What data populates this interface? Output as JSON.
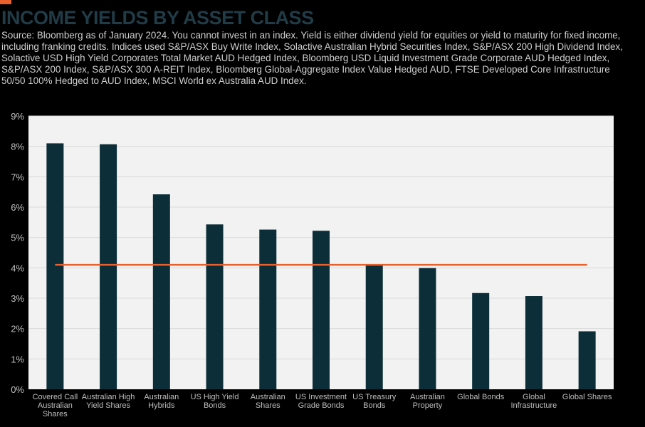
{
  "header": {
    "title": "INCOME YIELDS BY ASSET CLASS",
    "source_note": "Source: Bloomberg as of January 2024. You cannot invest in an index. Yield is either dividend yield for equities or yield to maturity for fixed income, including franking credits. Indices used S&P/ASX Buy Write Index, Solactive Australian Hybrid Securities Index, S&P/ASX 200 High Dividend Index, Solactive USD High Yield Corporates Total Market AUD Hedged Index, Bloomberg USD Liquid Investment Grade Corporate AUD Hedged Index, S&P/ASX 200 Index, S&P/ASX 300 A-REIT Index, Bloomberg Global-Aggregate Index Value Hedged AUD, FTSE Developed Core Infrastructure 50/50 100% Hedged to AUD Index, MSCI World ex Australia AUD Index."
  },
  "colors": {
    "background": "#000000",
    "plot_area": "#F2F2F2",
    "bar": "#0B2E38",
    "reference_line": "#E8612C",
    "title": "#213B47",
    "text": "#BFBFBF",
    "gridline": "#D9D9D9"
  },
  "chart_data": {
    "type": "bar",
    "categories": [
      [
        "Covered Call",
        "Australian",
        "Shares"
      ],
      [
        "Australian High",
        "Yield Shares"
      ],
      [
        "Australian",
        "Hybrids"
      ],
      [
        "US High Yield",
        "Bonds"
      ],
      [
        "Australian",
        "Shares"
      ],
      [
        "US Investment",
        "Grade Bonds"
      ],
      [
        "US Treasury",
        "Bonds"
      ],
      [
        "Australian",
        "Property"
      ],
      [
        "Global Bonds"
      ],
      [
        "Global",
        "Infrastructure"
      ],
      [
        "Global Shares"
      ]
    ],
    "values": [
      8.1,
      8.07,
      6.42,
      5.43,
      5.26,
      5.22,
      4.1,
      3.99,
      3.17,
      3.07,
      1.91
    ],
    "reference_line": 4.1,
    "ylim": [
      0,
      9
    ],
    "yticks": [
      "0%",
      "1%",
      "2%",
      "3%",
      "4%",
      "5%",
      "6%",
      "7%",
      "8%",
      "9%"
    ],
    "grid": true,
    "legend": "none",
    "xlabel": "",
    "ylabel": ""
  }
}
